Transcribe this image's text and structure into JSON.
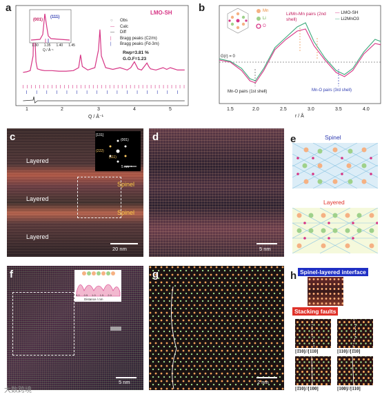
{
  "panels": {
    "a": {
      "letter": "a",
      "sample": "LMO-SH",
      "legend": [
        "Obs",
        "Calc",
        "Diff",
        "Bragg peaks (C2/m)",
        "Bragg peaks (Fd-3m)"
      ],
      "inset_labels": [
        "(001)",
        "(111)"
      ],
      "inset_ticks": [
        "1.30",
        "1.35",
        "1.40",
        "1.45"
      ],
      "inset_xlabel": "Q / Å⁻¹",
      "rwp": "Rwp=3.81 %",
      "gof": "G.O.F=1.23",
      "xticks": [
        "1",
        "2",
        "3",
        "4",
        "5"
      ],
      "xlabel": "Q / Å⁻¹"
    },
    "b": {
      "letter": "b",
      "legend": [
        "LMO-SH",
        "Li2MnO3"
      ],
      "species": [
        "Mn",
        "Li",
        "O"
      ],
      "annotations": [
        "Li/Mn-Mn pairs (2nd shell)",
        "G(r) = 0",
        "Mn-O pairs (1st shell)",
        "Mn-O pairs (3rd shell)"
      ],
      "xticks": [
        "1.5",
        "2.0",
        "2.5",
        "3.0",
        "3.5",
        "4.0"
      ],
      "xlabel": "r / Å"
    },
    "c": {
      "letter": "c",
      "labels": [
        "Layered",
        "Spinel",
        "Layered",
        "Spinel",
        "Layered"
      ],
      "fft_labels": [
        "[131]",
        "(001)",
        "(222)",
        "(111)"
      ],
      "fft_scale": "5 nm⁻¹",
      "scale": "20 nm"
    },
    "d": {
      "letter": "d",
      "scale": "5 nm"
    },
    "e": {
      "letter": "e",
      "top": "Spinel",
      "bottom": "Layered"
    },
    "f": {
      "letter": "f",
      "inset_xlabel": "Distance / nm",
      "inset_ticks": [
        "0.0",
        "0.5",
        "1.0",
        "1.5",
        "2.0"
      ],
      "scale": "5 nm"
    },
    "g": {
      "letter": "g",
      "scale": "2 nm"
    },
    "h": {
      "letter": "h",
      "interface": "Spinel-layered interface",
      "faults": "Stacking faults",
      "captions": [
        "[1̄10]//[110]",
        "[110]//[1̄10]",
        "[1̄10]//[100]",
        "[100]//[110]"
      ]
    }
  },
  "watermark": "大数跨境",
  "chart_data": [
    {
      "type": "line",
      "title": "LMO-SH",
      "xlabel": "Q / Å⁻¹",
      "ylabel": "",
      "xlim": [
        0.8,
        5.6
      ],
      "series": [
        {
          "name": "Obs",
          "x": [
            1.0,
            1.1,
            1.2,
            1.28,
            1.3,
            1.33,
            1.36,
            1.4,
            1.5,
            1.6,
            1.8,
            2.0,
            2.2,
            2.4,
            2.55,
            2.6,
            2.65,
            2.8,
            3.0,
            3.1,
            3.14,
            3.18,
            3.3,
            3.5,
            3.7,
            3.9,
            4.0,
            4.1,
            4.2,
            4.3,
            4.45,
            4.5,
            4.55,
            4.7,
            4.9,
            5.0,
            5.1,
            5.3,
            5.5
          ],
          "y": [
            0.12,
            0.13,
            0.15,
            0.4,
            1.0,
            0.7,
            0.3,
            0.18,
            0.16,
            0.15,
            0.15,
            0.14,
            0.14,
            0.15,
            0.2,
            0.42,
            0.22,
            0.16,
            0.2,
            0.5,
            0.85,
            0.4,
            0.2,
            0.17,
            0.2,
            0.16,
            0.2,
            0.3,
            0.18,
            0.16,
            0.28,
            0.22,
            0.18,
            0.16,
            0.2,
            0.17,
            0.2,
            0.16,
            0.16
          ]
        }
      ]
    },
    {
      "type": "line",
      "xlabel": "r / Å",
      "ylabel": "",
      "xlim": [
        1.3,
        4.2
      ],
      "series": [
        {
          "name": "LMO-SH",
          "x": [
            1.3,
            1.5,
            1.7,
            1.85,
            1.95,
            2.1,
            2.3,
            2.5,
            2.7,
            2.85,
            3.0,
            3.2,
            3.4,
            3.55,
            3.7,
            3.9,
            4.1,
            4.2
          ],
          "y": [
            0.05,
            0.0,
            -0.2,
            -0.45,
            -0.5,
            -0.2,
            0.3,
            0.55,
            0.75,
            0.8,
            0.4,
            0.05,
            -0.25,
            -0.35,
            -0.2,
            0.2,
            0.45,
            0.42
          ]
        },
        {
          "name": "Li2MnO3",
          "x": [
            1.3,
            1.5,
            1.7,
            1.85,
            1.95,
            2.1,
            2.3,
            2.5,
            2.7,
            2.85,
            3.0,
            3.2,
            3.4,
            3.55,
            3.7,
            3.9,
            4.1,
            4.2
          ],
          "y": [
            0.08,
            0.02,
            -0.15,
            -0.4,
            -0.45,
            -0.15,
            0.35,
            0.6,
            0.85,
            0.95,
            0.5,
            0.1,
            -0.2,
            -0.3,
            -0.15,
            0.25,
            0.55,
            0.5
          ]
        }
      ]
    }
  ]
}
